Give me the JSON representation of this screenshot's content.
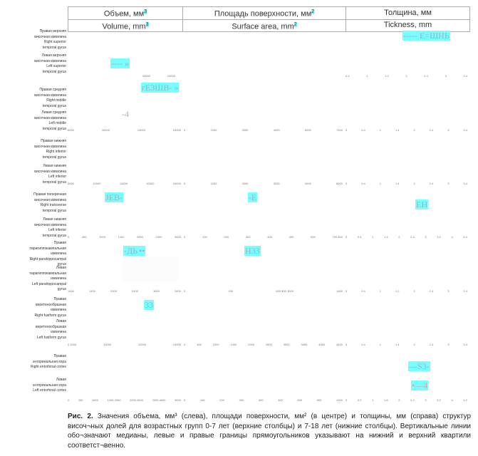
{
  "header": {
    "ru": [
      "Объем, мм",
      "Площадь поверхности, мм",
      "Толщина, мм"
    ],
    "en": [
      "Volume, mm",
      "Surface area, mm",
      "Tickness, mm"
    ],
    "sup": [
      "3",
      "2"
    ]
  },
  "rows": [
    [
      "Правая верхняя",
      "височная извилина",
      "Right superior",
      "temporal gyrus"
    ],
    [
      "Левая верхняя",
      "височная извилина",
      "Left superior",
      "temporal gyrus"
    ],
    [
      "Правая средняя",
      "височная извилина",
      "Right middle",
      "temporal gyrus"
    ],
    [
      "Левая средняя",
      "височная извилина",
      "Left middle",
      "temporal gyrus"
    ],
    [
      "Правая нижняя",
      "височная извилина",
      "Right inferior",
      "temporal gyrus"
    ],
    [
      "Левая нижняя",
      "височная извилина",
      "Left inferior",
      "temporal gyrus"
    ],
    [
      "Правая поперечная",
      "височная извилина",
      "Right transverse",
      "temporal gyrus"
    ],
    [
      "Левая нижняя",
      "височная извилина",
      "Left inferior",
      "temporal gyrus"
    ],
    [
      "Правая",
      "парагиппокампальная",
      "извилина",
      "Right parahippocampal",
      "gyrus"
    ],
    [
      "Левая",
      "парагиппокампальная",
      "извилина",
      "Left parahippocampal",
      "gyrus"
    ],
    [
      "Правая",
      "веретенообразная",
      "извилина",
      "Right fusiform gyrus"
    ],
    [
      "Левая",
      "веретенообразная",
      "извилина",
      "Left fusiform gyrus"
    ],
    [
      "Правая",
      "энторинальная кора",
      "Right entorhinal cortex"
    ],
    [
      "Левая",
      "энторинальная кора",
      "Left entorhinal cortex"
    ]
  ],
  "ticks": [
    [
      [
        "20000",
        "24000"
      ],
      [],
      [
        "0.4",
        "1",
        "1.2",
        "2",
        "2.4",
        "3",
        "3.4"
      ]
    ],
    [
      [
        "6000",
        "10000",
        "14000",
        "24000"
      ],
      [
        "0",
        "1000",
        "2000",
        "4000",
        "6000",
        "7000"
      ],
      [
        "0",
        "0.4",
        "1",
        "1.4",
        "2",
        "2.4",
        "3",
        "3.4"
      ]
    ],
    [
      [
        "6000",
        "10000",
        "14000",
        "20000",
        "24000"
      ],
      [
        "0",
        "1000",
        "2000",
        "3000",
        "4000",
        "6000"
      ],
      [
        "0",
        "0.4",
        "1",
        "1.4",
        "2",
        "2.4",
        "3",
        "3.4"
      ]
    ],
    [
      [
        "0",
        "400",
        "1000",
        "1400",
        "2000",
        "2400",
        "3000"
      ],
      [
        "0",
        "100",
        "200",
        "300",
        "400",
        "400",
        "600",
        "700 800"
      ],
      [
        "0",
        "0.4",
        "1",
        "1.4",
        "2",
        "2.4",
        "3",
        "3.4",
        "4",
        "4.4"
      ]
    ],
    [
      [
        "1000",
        "1400",
        "2000",
        "2400",
        "3000",
        "3400"
      ],
      [
        "0",
        "200",
        "600 800 1000",
        "1400"
      ],
      [
        "0",
        "0.4",
        "1",
        "1.2",
        "2",
        "2.4",
        "3",
        "3.4"
      ]
    ],
    [
      [
        "0 1000",
        "10000",
        "12000",
        "14000"
      ],
      [
        "0",
        "400",
        "1000",
        "1400",
        "2000",
        "2600",
        "3000",
        "3400",
        "4000",
        "4400"
      ],
      [
        "0",
        "0.4",
        "1",
        "1.4",
        "2",
        "2.4",
        "3",
        "3.4"
      ]
    ],
    [
      [
        "0",
        "200",
        "1000",
        "1200 2000",
        "2200 2600",
        "2200 4000",
        "4000"
      ],
      [
        "0",
        "100",
        "200",
        "300",
        "400",
        "300",
        "500",
        "800",
        "1000"
      ],
      [
        "0",
        "0.2",
        "1",
        "1.8",
        "2",
        "2.2",
        "3",
        "3.2",
        "4",
        "4.2"
      ]
    ]
  ],
  "artifacts": [
    "----- Е=ШНЬ",
    "---- »",
    "гЕ3ШВ- »",
    "-4",
    "ЈЕВ-",
    "-Е",
    "ЕН",
    "-ДЬ",
    "••",
    "Н33",
    "33",
    "—S3-",
    "•—4"
  ],
  "caption": {
    "label": "Рис. 2.",
    "text": "Значения объема, мм³ (слева), площади поверхности, мм² (в центре) и толщины, мм (справа) структур височ¬ных долей для возрастных групп 0-7 лет (верхние столбцы) и 7-18 лет (нижние столбцы). Вертикальные линии обо¬значают медианы, левые и правые границы прямоугольников указывают на нижний и верхний квартили соответст¬венно."
  }
}
